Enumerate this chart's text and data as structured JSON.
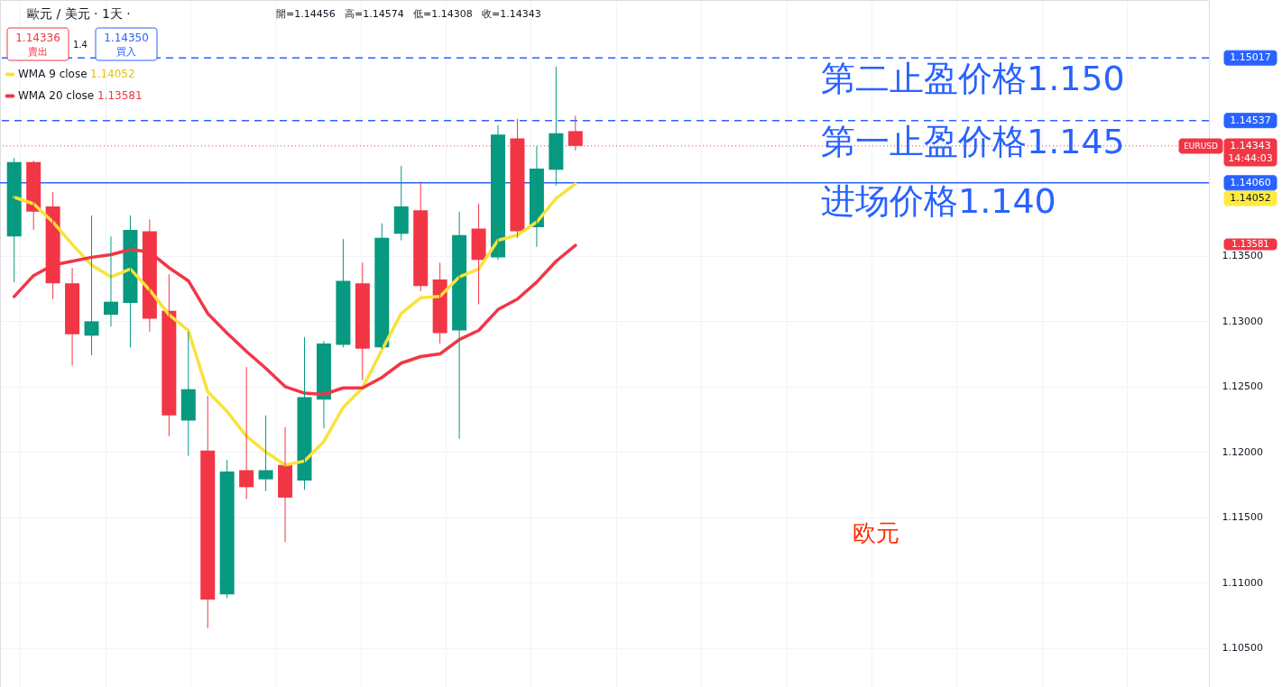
{
  "chart_data": {
    "type": "candlestick",
    "title": "歐元 / 美元 · 1天 ·",
    "categories": [
      null,
      null,
      null,
      null,
      null,
      null,
      null,
      null,
      null,
      null,
      null,
      null,
      null,
      null,
      null,
      null,
      null,
      null,
      null,
      null,
      null,
      null,
      null,
      null,
      null,
      null,
      null,
      null,
      null,
      null,
      null,
      null,
      null,
      null,
      null,
      null,
      null,
      null,
      null,
      null,
      null,
      null,
      null,
      null,
      null,
      null,
      null,
      null,
      null,
      null,
      null,
      null,
      null,
      null,
      null,
      null,
      null,
      null,
      null,
      null,
      null,
      null
    ],
    "ohlc": [
      [
        1.1365,
        1.1425,
        1.133,
        1.1422
      ],
      [
        1.1422,
        1.1423,
        1.137,
        1.1384
      ],
      [
        1.1388,
        1.1399,
        1.1317,
        1.1329
      ],
      [
        1.1329,
        1.1341,
        1.1266,
        1.129
      ],
      [
        1.1289,
        1.1381,
        1.1274,
        1.13
      ],
      [
        1.1305,
        1.1365,
        1.1296,
        1.1315
      ],
      [
        1.1314,
        1.1381,
        1.128,
        1.137
      ],
      [
        1.1369,
        1.1378,
        1.1292,
        1.1302
      ],
      [
        1.1308,
        1.1336,
        1.1212,
        1.1228
      ],
      [
        1.1224,
        1.1292,
        1.1197,
        1.1248
      ],
      [
        1.1201,
        1.1243,
        1.1065,
        1.1087
      ],
      [
        1.1091,
        1.1194,
        1.1088,
        1.1185
      ],
      [
        1.1186,
        1.1265,
        1.1164,
        1.1173
      ],
      [
        1.1179,
        1.1228,
        1.117,
        1.1186
      ],
      [
        1.119,
        1.1219,
        1.1131,
        1.1165
      ],
      [
        1.1178,
        1.1288,
        1.1171,
        1.1242
      ],
      [
        1.124,
        1.1285,
        1.1218,
        1.1283
      ],
      [
        1.1282,
        1.1363,
        1.128,
        1.1331
      ],
      [
        1.1329,
        1.1345,
        1.1255,
        1.1279
      ],
      [
        1.128,
        1.1375,
        1.1279,
        1.1364
      ],
      [
        1.1367,
        1.1419,
        1.1362,
        1.1388
      ],
      [
        1.1385,
        1.1407,
        1.1323,
        1.1327
      ],
      [
        1.1332,
        1.1345,
        1.1283,
        1.1291
      ],
      [
        1.1293,
        1.1384,
        1.121,
        1.1366
      ],
      [
        1.1371,
        1.139,
        1.1313,
        1.1347
      ],
      [
        1.1349,
        1.145,
        1.1347,
        1.1443
      ],
      [
        1.144,
        1.1455,
        1.1364,
        1.1369
      ],
      [
        1.1372,
        1.1434,
        1.1357,
        1.1417
      ],
      [
        1.1416,
        1.1495,
        1.1404,
        1.1444
      ],
      [
        1.14456,
        1.14574,
        1.14308,
        1.14343
      ],
      null,
      null,
      null,
      null,
      null,
      null,
      null,
      null,
      null,
      null,
      null,
      null,
      null,
      null,
      null,
      null,
      null,
      null,
      null,
      null,
      null,
      null,
      null,
      null,
      null,
      null,
      null,
      null,
      null,
      null,
      null,
      null
    ],
    "colors": [
      "#089981",
      "#f23645",
      "#f23645",
      "#f23645",
      "#089981",
      "#089981",
      "#089981",
      "#f23645",
      "#f23645",
      "#089981",
      "#f23645",
      "#089981",
      "#f23645",
      "#089981",
      "#f23645",
      "#089981",
      "#089981",
      "#089981",
      "#f23645",
      "#089981",
      "#089981",
      "#f23645",
      "#f23645",
      "#089981",
      "#f23645",
      "#089981",
      "#f23645",
      "#089981",
      "#089981",
      "#f23645",
      null,
      null,
      null,
      null,
      null,
      null,
      null,
      null,
      null,
      null,
      null,
      null,
      null,
      null,
      null,
      null,
      null,
      null,
      null,
      null,
      null,
      null,
      null,
      null,
      null,
      null,
      null,
      null,
      null,
      null,
      null,
      null
    ],
    "series": [
      {
        "name": "WMA 9 close",
        "type": "line",
        "color": "#f9e23c",
        "values": [
          1.1395,
          1.139,
          1.1376,
          1.1359,
          1.1343,
          1.1334,
          1.134,
          1.1324,
          1.1305,
          1.1293,
          1.1246,
          1.1231,
          1.1212,
          1.12,
          1.119,
          1.1193,
          1.1208,
          1.1234,
          1.1249,
          1.1278,
          1.1306,
          1.1318,
          1.1319,
          1.1334,
          1.134,
          1.1362,
          1.1366,
          1.1376,
          1.1394,
          1.14052,
          null,
          null,
          null,
          null,
          null,
          null,
          null,
          null,
          null,
          null,
          null,
          null,
          null,
          null,
          null,
          null,
          null,
          null,
          null,
          null,
          null,
          null,
          null,
          null,
          null,
          null,
          null,
          null,
          null,
          null,
          null,
          null
        ]
      },
      {
        "name": "WMA 20 close",
        "type": "line",
        "color": "#f23645",
        "values": [
          1.1319,
          1.1335,
          1.1343,
          1.1346,
          1.1349,
          1.1351,
          1.1355,
          1.1353,
          1.1341,
          1.1331,
          1.1306,
          1.1291,
          1.1277,
          1.1264,
          1.125,
          1.1245,
          1.1244,
          1.1249,
          1.1249,
          1.1257,
          1.1268,
          1.1273,
          1.1275,
          1.1286,
          1.1293,
          1.1309,
          1.1317,
          1.133,
          1.1346,
          1.13581,
          null,
          null,
          null,
          null,
          null,
          null,
          null,
          null,
          null,
          null,
          null,
          null,
          null,
          null,
          null,
          null,
          null,
          null,
          null,
          null,
          null,
          null,
          null,
          null,
          null,
          null,
          null,
          null,
          null,
          null,
          null,
          null
        ]
      }
    ],
    "ylim": [
      1.102,
      1.1546
    ],
    "yticks": [
      {
        "value": 1.105,
        "label": "1.10500"
      },
      {
        "value": 1.11,
        "label": "1.11000"
      },
      {
        "value": 1.115,
        "label": "1.11500"
      },
      {
        "value": 1.12,
        "label": "1.12000"
      },
      {
        "value": 1.125,
        "label": "1.12500"
      },
      {
        "value": 1.13,
        "label": "1.13000"
      },
      {
        "value": 1.135,
        "label": "1.13500"
      }
    ],
    "grid": true,
    "legend": "top left",
    "ref_lines": [
      {
        "axis": "y",
        "value": 1.15017,
        "label": "1.15017",
        "color": "#2962ff",
        "line_style": "dashed"
      },
      {
        "axis": "y",
        "value": 1.14537,
        "label": "1.14537",
        "color": "#2962ff",
        "line_style": "dashed"
      },
      {
        "axis": "y",
        "value": 1.14343,
        "label": "1.14343",
        "color": "#f23645",
        "line_style": "dotted"
      },
      {
        "axis": "y",
        "value": 1.1406,
        "label": "1.14060",
        "color": "#2962ff",
        "line_style": "solid"
      }
    ],
    "annotations": [
      "開=1.14456",
      "高=1.14574",
      "低=1.14308",
      "收=1.14343",
      "1.14336",
      "賣出",
      "1.4",
      "1.14350",
      "買入",
      "1.14052",
      "1.13581",
      "第二止盈价格1.150",
      "第一止盈价格1.145",
      "进场价格1.140",
      "欧元",
      "14:44:03",
      "1.14052",
      "1.13581",
      "EURUSD"
    ]
  }
}
